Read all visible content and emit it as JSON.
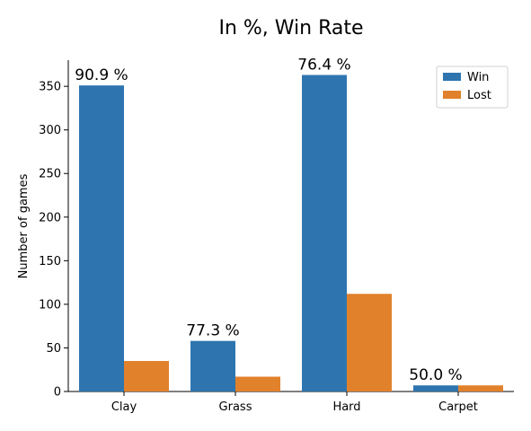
{
  "chart_data": {
    "type": "bar",
    "title": "In %, Win Rate",
    "xlabel": "",
    "ylabel": "Number of games",
    "categories": [
      "Clay",
      "Grass",
      "Hard",
      "Carpet"
    ],
    "series": [
      {
        "name": "Win",
        "values": [
          351,
          58,
          363,
          7
        ],
        "color": "#2e75b0"
      },
      {
        "name": "Lost",
        "values": [
          35,
          17,
          112,
          7
        ],
        "color": "#e1812c"
      }
    ],
    "bar_labels": [
      "90.9 %",
      "77.3 %",
      "76.4 %",
      "50.0 %"
    ],
    "ylim": [
      0,
      380
    ],
    "yticks": [
      0,
      50,
      100,
      150,
      200,
      250,
      300,
      350
    ],
    "grid": false,
    "legend_position": "top-right"
  }
}
